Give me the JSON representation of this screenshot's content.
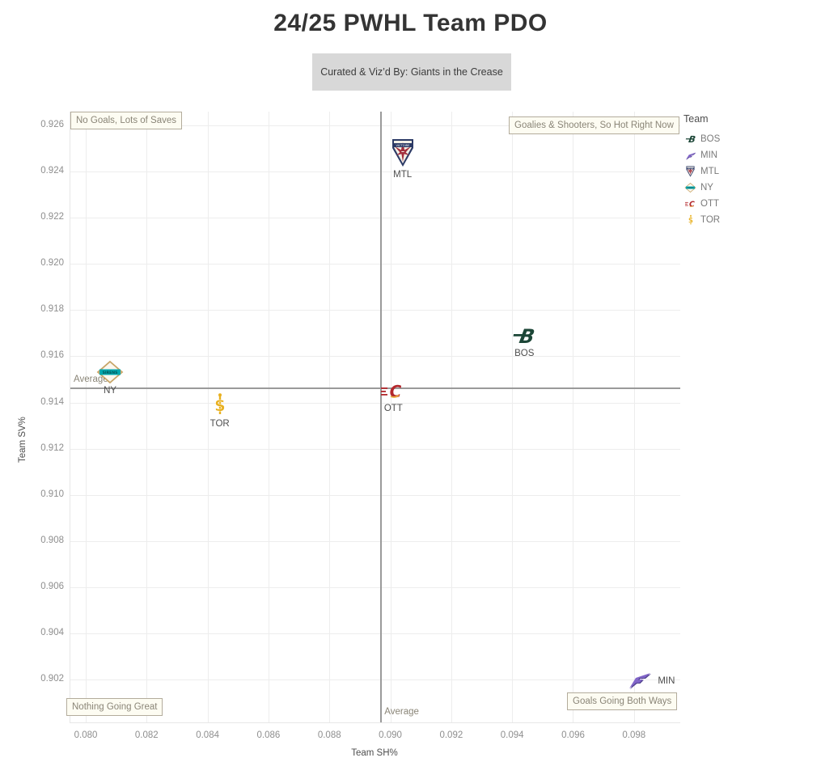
{
  "page": {
    "background": "#ffffff"
  },
  "legend": {
    "title": "Team",
    "items": [
      "BOS",
      "MIN",
      "MTL",
      "NY",
      "OTT",
      "TOR"
    ]
  },
  "annotations": {
    "top_left": "No Goals, Lots of Saves",
    "top_right": "Goalies & Shooters, So Hot Right Now",
    "bottom_left": "Nothing Going Great",
    "bottom_right": "Goals Going Both Ways",
    "avg_horizontal_label": "Average",
    "avg_vertical_label": "Average"
  },
  "team_colors": {
    "BOS": {
      "primary": "#1c4637",
      "secondary": "#12352a"
    },
    "MIN": {
      "primary": "#8266c9",
      "secondary": "#51418f"
    },
    "MTL": {
      "primary": "#2c3a66",
      "secondary": "#a32e3c"
    },
    "NY": {
      "primary": "#00a7ad",
      "secondary": "#c7a568"
    },
    "OTT": {
      "primary": "#b3282d",
      "secondary": "#eaa93c"
    },
    "TOR": {
      "primary": "#e8b01f",
      "secondary": "#c79010"
    }
  },
  "chart_data": {
    "type": "scatter",
    "title": "24/25 PWHL Team PDO",
    "subtitle": "Curated & Viz’d By: Giants in the Crease",
    "xlabel": "Team SH%",
    "ylabel": "Team SV%",
    "x_ticks": [
      "0.080",
      "0.082",
      "0.084",
      "0.086",
      "0.088",
      "0.090",
      "0.092",
      "0.094",
      "0.096",
      "0.098"
    ],
    "y_ticks": [
      "0.902",
      "0.904",
      "0.906",
      "0.908",
      "0.910",
      "0.912",
      "0.914",
      "0.916",
      "0.918",
      "0.920",
      "0.922",
      "0.924",
      "0.926"
    ],
    "xlim": [
      0.0795,
      0.0995
    ],
    "ylim": [
      0.9001,
      0.9266
    ],
    "grid": true,
    "legend_position": "top-right",
    "average_x": 0.0897,
    "average_y": 0.9146,
    "points": [
      {
        "team": "MTL",
        "sh": 0.0904,
        "sv": 0.9248,
        "label_side": "below"
      },
      {
        "team": "BOS",
        "sh": 0.0944,
        "sv": 0.9169,
        "label_side": "below"
      },
      {
        "team": "NY",
        "sh": 0.0808,
        "sv": 0.9153,
        "label_side": "below"
      },
      {
        "team": "OTT",
        "sh": 0.0901,
        "sv": 0.9145,
        "label_side": "below"
      },
      {
        "team": "TOR",
        "sh": 0.0844,
        "sv": 0.9139,
        "label_side": "below"
      },
      {
        "team": "MIN",
        "sh": 0.0982,
        "sv": 0.902,
        "label_side": "right"
      }
    ]
  }
}
